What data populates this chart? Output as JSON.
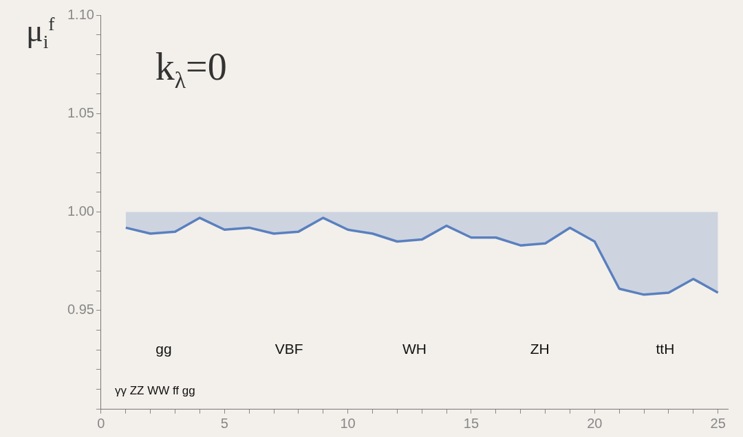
{
  "chart_data": {
    "type": "line",
    "title": "k$_{λ}$=0",
    "ylabel": "μ$_{i}$$^{f}$",
    "x": [
      1,
      2,
      3,
      4,
      5,
      6,
      7,
      8,
      9,
      10,
      11,
      12,
      13,
      14,
      15,
      16,
      17,
      18,
      19,
      20,
      21,
      22,
      23,
      24,
      25
    ],
    "series": [
      {
        "color": "#5a80bf",
        "values": [
          0.992,
          0.989,
          0.99,
          0.997,
          0.991,
          0.992,
          0.989,
          0.99,
          0.997,
          0.991,
          0.989,
          0.985,
          0.986,
          0.993,
          0.987,
          0.987,
          0.983,
          0.984,
          0.992,
          0.985,
          0.961,
          0.958,
          0.959,
          0.966,
          0.959
        ],
        "lower": [
          0.992,
          0.989,
          0.99,
          0.997,
          0.991,
          0.992,
          0.989,
          0.99,
          0.997,
          0.991,
          0.989,
          0.985,
          0.986,
          0.993,
          0.987,
          0.987,
          0.983,
          0.984,
          0.992,
          0.985,
          0.961,
          0.958,
          0.959,
          0.966,
          0.959
        ],
        "upper": [
          1,
          1,
          1,
          1,
          1,
          1,
          1,
          1,
          1,
          1,
          1,
          1,
          1,
          1,
          1,
          1,
          1,
          1,
          1,
          1,
          1,
          1,
          1,
          1,
          1
        ]
      }
    ],
    "xlim": [
      0,
      25.4
    ],
    "xticks": [
      0,
      {
        "value": 1,
        "label": null
      },
      {
        "value": 2,
        "label": null
      },
      {
        "value": 3,
        "label": null
      },
      {
        "value": 4,
        "label": null
      },
      5,
      {
        "value": 6,
        "label": null
      },
      {
        "value": 7,
        "label": null
      },
      {
        "value": 8,
        "label": null
      },
      {
        "value": 9,
        "label": null
      },
      10,
      {
        "value": 11,
        "label": null
      },
      {
        "value": 12,
        "label": null
      },
      {
        "value": 13,
        "label": null
      },
      {
        "value": 14,
        "label": null
      },
      15,
      {
        "value": 16,
        "label": null
      },
      {
        "value": 17,
        "label": null
      },
      {
        "value": 18,
        "label": null
      },
      {
        "value": 19,
        "label": null
      },
      20,
      {
        "value": 21,
        "label": null
      },
      {
        "value": 22,
        "label": null
      },
      {
        "value": 23,
        "label": null
      },
      {
        "value": 24,
        "label": null
      },
      25
    ],
    "ylim": [
      0.9,
      1.1
    ],
    "yticks": [
      {
        "value": 0.9,
        "label": null
      },
      {
        "value": 0.91,
        "label": null
      },
      {
        "value": 0.92,
        "label": null
      },
      {
        "value": 0.93,
        "label": null
      },
      {
        "value": 0.94,
        "label": null
      },
      0.95,
      {
        "value": 0.96,
        "label": null
      },
      {
        "value": 0.97,
        "label": null
      },
      {
        "value": 0.98,
        "label": null
      },
      {
        "value": 0.99,
        "label": null
      },
      {
        "value": 1,
        "label": "1.00"
      },
      {
        "value": 1.01,
        "label": null
      },
      {
        "value": 1.02,
        "label": null
      },
      {
        "value": 1.03,
        "label": null
      },
      {
        "value": 1.04,
        "label": null
      },
      1.05,
      {
        "value": 1.06,
        "label": null
      },
      {
        "value": 1.07,
        "label": null
      },
      {
        "value": 1.08,
        "label": null
      },
      {
        "value": 1.09,
        "label": null
      },
      {
        "value": 1.1,
        "label": "1.10"
      }
    ],
    "grid": false,
    "annotations": [
      "gg",
      "VBF",
      "WH",
      "ZH",
      "ttH",
      "γγ ZZ WW ff gg"
    ]
  }
}
